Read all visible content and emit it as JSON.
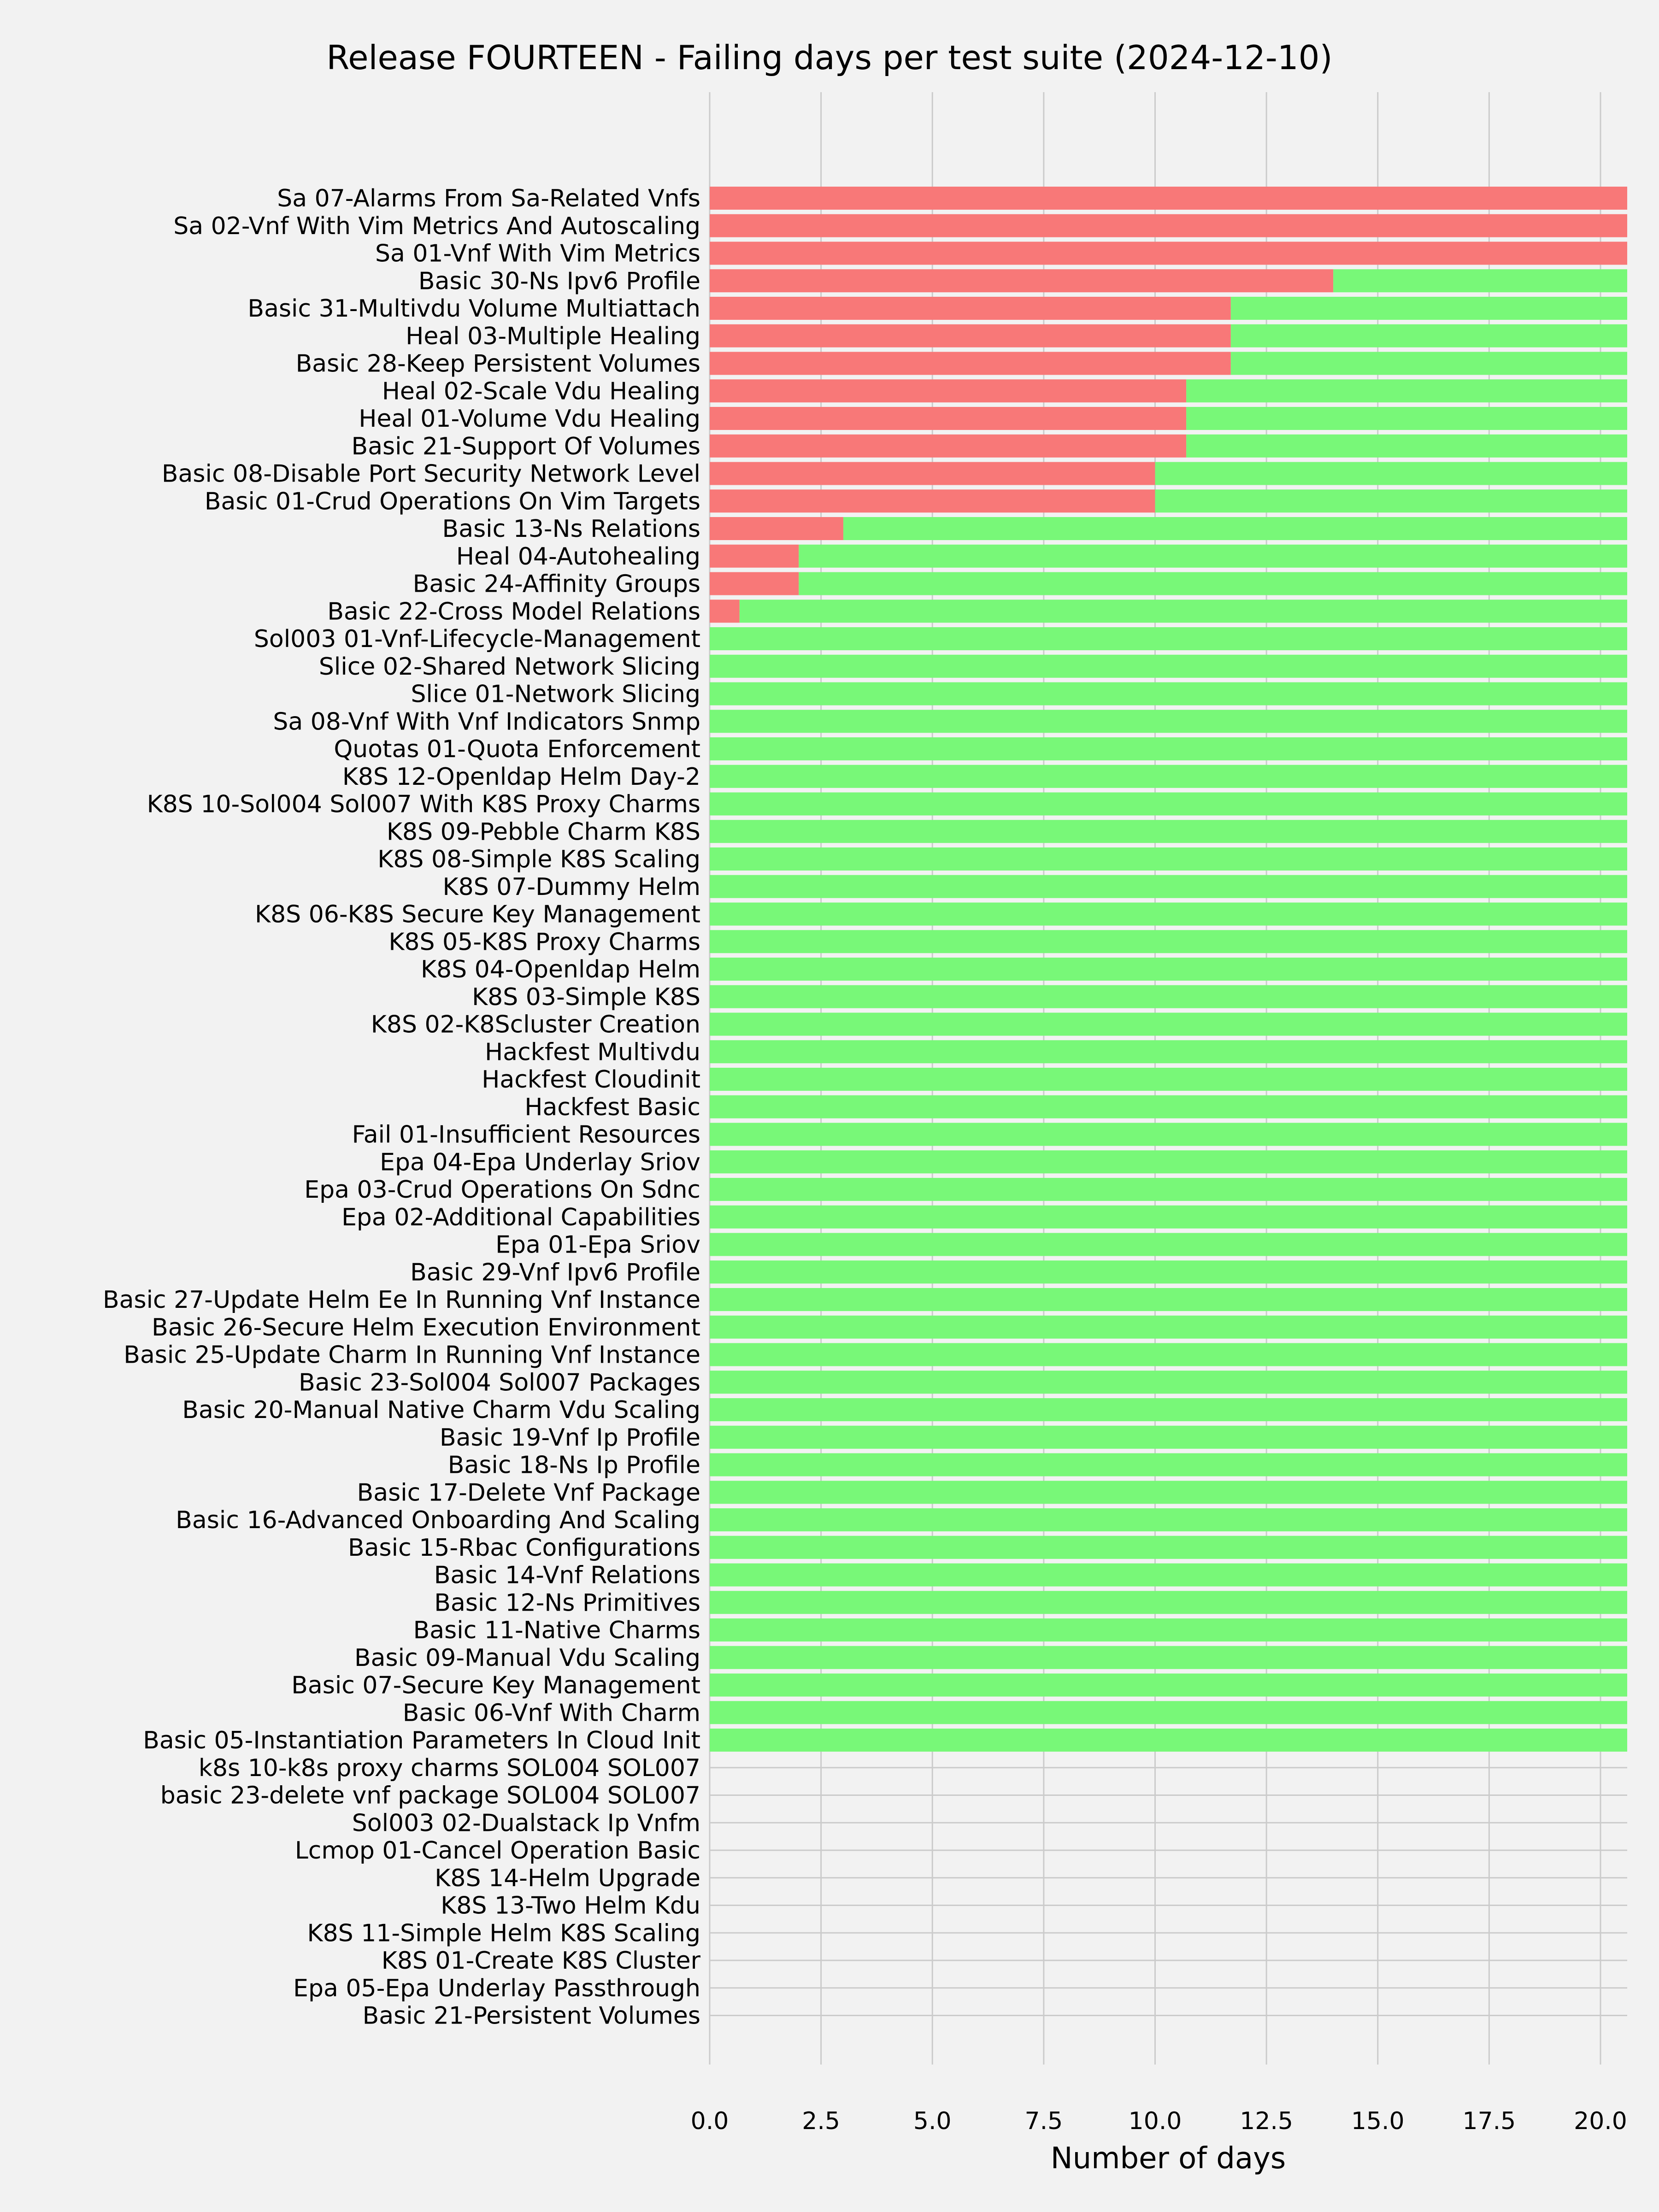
{
  "chart_data": {
    "type": "bar",
    "orientation": "horizontal",
    "stacked": true,
    "title": "Release FOURTEEN - Failing days per test suite (2024-12-10)",
    "xlabel": "Number of days",
    "ylabel": "",
    "xlim": [
      0,
      20.6
    ],
    "xticks": [
      "0.0",
      "2.5",
      "5.0",
      "7.5",
      "10.0",
      "12.5",
      "15.0",
      "17.5",
      "20.0"
    ],
    "grid": true,
    "legend": "none",
    "colors": {
      "failing": "#f87878",
      "passing": "#78f878",
      "grid": "#cbcbcb",
      "background": "#f2f2f2"
    },
    "categories": [
      "Sa 07-Alarms From Sa-Related Vnfs",
      "Sa 02-Vnf With Vim Metrics And Autoscaling",
      "Sa 01-Vnf With Vim Metrics",
      "Basic 30-Ns Ipv6 Profile",
      "Basic 31-Multivdu Volume Multiattach",
      "Heal 03-Multiple Healing",
      "Basic 28-Keep Persistent Volumes",
      "Heal 02-Scale Vdu Healing",
      "Heal 01-Volume Vdu Healing",
      "Basic 21-Support Of Volumes",
      "Basic 08-Disable Port Security Network Level",
      "Basic 01-Crud Operations On Vim Targets",
      "Basic 13-Ns Relations",
      "Heal 04-Autohealing",
      "Basic 24-Affinity Groups",
      "Basic 22-Cross Model Relations",
      "Sol003 01-Vnf-Lifecycle-Management",
      "Slice 02-Shared Network Slicing",
      "Slice 01-Network Slicing",
      "Sa 08-Vnf With Vnf Indicators Snmp",
      "Quotas 01-Quota Enforcement",
      "K8S 12-Openldap Helm Day-2",
      "K8S 10-Sol004 Sol007 With K8S Proxy Charms",
      "K8S 09-Pebble Charm K8S",
      "K8S 08-Simple K8S Scaling",
      "K8S 07-Dummy Helm",
      "K8S 06-K8S Secure Key Management",
      "K8S 05-K8S Proxy Charms",
      "K8S 04-Openldap Helm",
      "K8S 03-Simple K8S",
      "K8S 02-K8Scluster Creation",
      "Hackfest Multivdu",
      "Hackfest Cloudinit",
      "Hackfest Basic",
      "Fail 01-Insufficient Resources",
      "Epa 04-Epa Underlay Sriov",
      "Epa 03-Crud Operations On Sdnc",
      "Epa 02-Additional Capabilities",
      "Epa 01-Epa Sriov",
      "Basic 29-Vnf Ipv6 Profile",
      "Basic 27-Update Helm Ee In Running Vnf Instance",
      "Basic 26-Secure Helm Execution Environment",
      "Basic 25-Update Charm In Running Vnf Instance",
      "Basic 23-Sol004 Sol007 Packages",
      "Basic 20-Manual Native Charm Vdu Scaling",
      "Basic 19-Vnf Ip Profile",
      "Basic 18-Ns Ip Profile",
      "Basic 17-Delete Vnf Package",
      "Basic 16-Advanced Onboarding And Scaling",
      "Basic 15-Rbac Configurations",
      "Basic 14-Vnf Relations",
      "Basic 12-Ns Primitives",
      "Basic 11-Native Charms",
      "Basic 09-Manual Vdu Scaling",
      "Basic 07-Secure Key Management",
      "Basic 06-Vnf With Charm",
      "Basic 05-Instantiation Parameters In Cloud Init",
      "k8s 10-k8s proxy charms SOL004 SOL007",
      "basic 23-delete vnf package SOL004 SOL007",
      "Sol003 02-Dualstack Ip Vnfm",
      "Lcmop 01-Cancel Operation Basic",
      "K8S 14-Helm Upgrade",
      "K8S 13-Two Helm Kdu",
      "K8S 11-Simple Helm K8S Scaling",
      "K8S 01-Create K8S Cluster",
      "Epa 05-Epa Underlay Passthrough",
      "Basic 21-Persistent Volumes"
    ],
    "series": [
      {
        "values": [
          20.6,
          20.6,
          20.6,
          14,
          11.7,
          11.7,
          11.7,
          10.7,
          10.7,
          10.7,
          10,
          10,
          3,
          2,
          2,
          0.67,
          0,
          0,
          0,
          0,
          0,
          0,
          0,
          0,
          0,
          0,
          0,
          0,
          0,
          0,
          0,
          0,
          0,
          0,
          0,
          0,
          0,
          0,
          0,
          0,
          0,
          0,
          0,
          0,
          0,
          0,
          0,
          0,
          0,
          0,
          0,
          0,
          0,
          0,
          0,
          0,
          0,
          0,
          0,
          0,
          0,
          0,
          0,
          0,
          0,
          0,
          0
        ]
      },
      {
        "values": [
          0,
          0,
          0,
          6.6,
          8.9,
          8.9,
          8.9,
          9.9,
          9.9,
          9.9,
          10.6,
          10.6,
          17.6,
          18.6,
          18.6,
          19.93,
          20.6,
          20.6,
          20.6,
          20.6,
          20.6,
          20.6,
          20.6,
          20.6,
          20.6,
          20.6,
          20.6,
          20.6,
          20.6,
          20.6,
          20.6,
          20.6,
          20.6,
          20.6,
          20.6,
          20.6,
          20.6,
          20.6,
          20.6,
          20.6,
          20.6,
          20.6,
          20.6,
          20.6,
          20.6,
          20.6,
          20.6,
          20.6,
          20.6,
          20.6,
          20.6,
          20.6,
          20.6,
          20.6,
          20.6,
          20.6,
          20.6,
          0,
          0,
          0,
          0,
          0,
          0,
          0,
          0,
          0,
          0
        ]
      }
    ]
  }
}
